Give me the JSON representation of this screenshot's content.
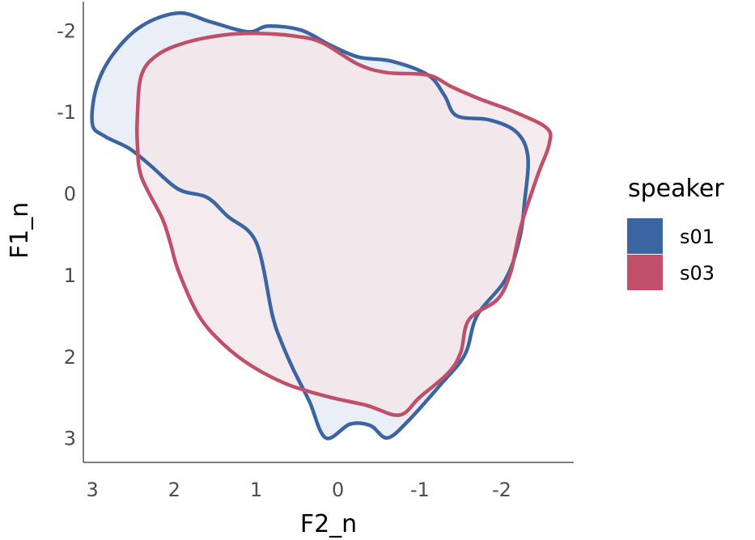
{
  "chart_data": {
    "type": "area",
    "xlabel": "F2_n",
    "ylabel": "F1_n",
    "x_reversed": true,
    "y_reversed": true,
    "xlim": [
      3.11,
      -2.88
    ],
    "ylim": [
      -2.35,
      3.3
    ],
    "x_ticks": [
      3,
      2,
      1,
      0,
      -1,
      -2
    ],
    "x_tick_labels": [
      "3",
      "2",
      "1",
      "0",
      "-1",
      "-2"
    ],
    "y_ticks": [
      -2,
      -1,
      0,
      1,
      2,
      3
    ],
    "y_tick_labels": [
      "-2",
      "-1",
      "0",
      "1",
      "2",
      "3"
    ],
    "grid": false,
    "legend": {
      "title": "speaker",
      "position": "right",
      "entries": [
        "s01",
        "s03"
      ]
    },
    "series": [
      {
        "name": "s01",
        "color": "#3a65a0",
        "fill": "#e6ebf4",
        "points": [
          [
            3.0,
            -0.85
          ],
          [
            2.95,
            -1.3
          ],
          [
            2.75,
            -1.7
          ],
          [
            2.4,
            -2.05
          ],
          [
            1.95,
            -2.21
          ],
          [
            1.55,
            -2.1
          ],
          [
            1.1,
            -1.98
          ],
          [
            0.85,
            -2.05
          ],
          [
            0.45,
            -2.0
          ],
          [
            0.1,
            -1.82
          ],
          [
            -0.25,
            -1.67
          ],
          [
            -0.65,
            -1.62
          ],
          [
            -1.1,
            -1.45
          ],
          [
            -1.3,
            -1.2
          ],
          [
            -1.45,
            -0.95
          ],
          [
            -1.85,
            -0.9
          ],
          [
            -2.18,
            -0.75
          ],
          [
            -2.32,
            -0.45
          ],
          [
            -2.28,
            0.1
          ],
          [
            -2.22,
            0.55
          ],
          [
            -2.05,
            1.05
          ],
          [
            -1.7,
            1.5
          ],
          [
            -1.55,
            1.98
          ],
          [
            -1.25,
            2.35
          ],
          [
            -0.85,
            2.8
          ],
          [
            -0.6,
            3.0
          ],
          [
            -0.4,
            2.85
          ],
          [
            -0.15,
            2.83
          ],
          [
            0.15,
            3.0
          ],
          [
            0.35,
            2.55
          ],
          [
            0.55,
            2.15
          ],
          [
            0.7,
            1.8
          ],
          [
            0.8,
            1.5
          ],
          [
            1.0,
            0.6
          ],
          [
            1.35,
            0.28
          ],
          [
            1.6,
            0.05
          ],
          [
            1.95,
            -0.05
          ],
          [
            2.3,
            -0.35
          ],
          [
            2.55,
            -0.55
          ],
          [
            2.85,
            -0.7
          ]
        ]
      },
      {
        "name": "s03",
        "color": "#c0506a",
        "fill": "#f3e6ea",
        "points": [
          [
            2.4,
            -1.45
          ],
          [
            2.2,
            -1.7
          ],
          [
            1.85,
            -1.85
          ],
          [
            1.4,
            -1.94
          ],
          [
            1.0,
            -1.96
          ],
          [
            0.55,
            -1.93
          ],
          [
            0.2,
            -1.85
          ],
          [
            -0.25,
            -1.58
          ],
          [
            -0.6,
            -1.48
          ],
          [
            -1.1,
            -1.45
          ],
          [
            -1.4,
            -1.3
          ],
          [
            -1.75,
            -1.15
          ],
          [
            -2.15,
            -1.0
          ],
          [
            -2.55,
            -0.8
          ],
          [
            -2.58,
            -0.6
          ],
          [
            -2.45,
            -0.25
          ],
          [
            -2.25,
            0.35
          ],
          [
            -2.18,
            0.65
          ],
          [
            -2.1,
            1.0
          ],
          [
            -1.95,
            1.3
          ],
          [
            -1.6,
            1.55
          ],
          [
            -1.5,
            1.95
          ],
          [
            -1.35,
            2.2
          ],
          [
            -1.0,
            2.5
          ],
          [
            -0.75,
            2.72
          ],
          [
            -0.35,
            2.6
          ],
          [
            0.1,
            2.5
          ],
          [
            0.6,
            2.35
          ],
          [
            1.05,
            2.12
          ],
          [
            1.4,
            1.85
          ],
          [
            1.7,
            1.5
          ],
          [
            1.95,
            0.95
          ],
          [
            2.05,
            0.6
          ],
          [
            2.15,
            0.3
          ],
          [
            2.4,
            -0.2
          ],
          [
            2.45,
            -0.6
          ],
          [
            2.45,
            -0.95
          ]
        ]
      }
    ]
  }
}
